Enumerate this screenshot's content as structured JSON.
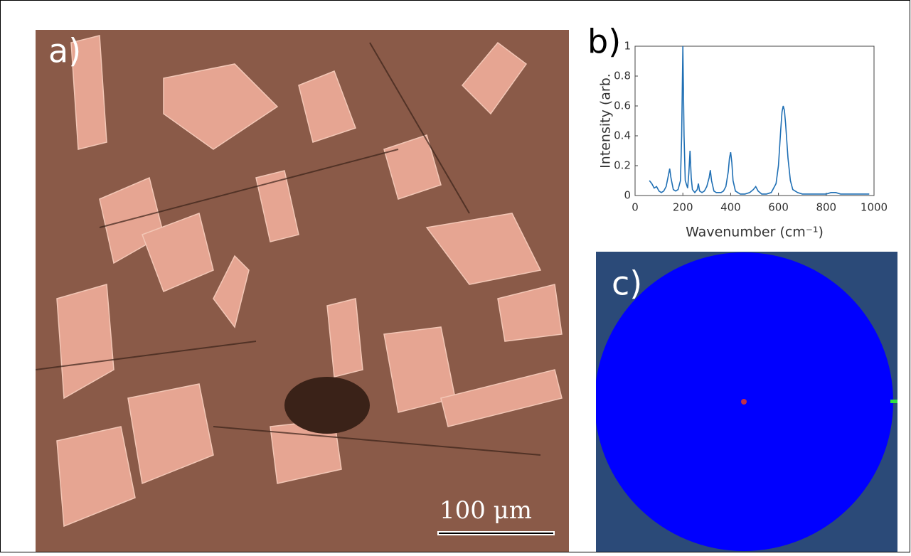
{
  "figure": {
    "panel_a_label": "a)",
    "scale_bar_label": "100 μm",
    "panel_b_label": "b)",
    "panel_c_label": "c)"
  },
  "chart_data": {
    "type": "line",
    "xlabel": "Wavenumber (cm⁻¹)",
    "ylabel": "Intensity (arb.",
    "x": [
      60,
      70,
      80,
      90,
      100,
      110,
      120,
      130,
      140,
      145,
      150,
      160,
      170,
      180,
      190,
      195,
      200,
      205,
      210,
      220,
      225,
      230,
      235,
      240,
      250,
      260,
      265,
      270,
      280,
      290,
      300,
      310,
      315,
      320,
      330,
      340,
      350,
      360,
      370,
      380,
      390,
      395,
      400,
      405,
      410,
      420,
      440,
      460,
      480,
      495,
      505,
      515,
      530,
      550,
      570,
      590,
      600,
      610,
      615,
      620,
      625,
      630,
      640,
      650,
      660,
      680,
      700,
      750,
      800,
      820,
      830,
      840,
      860,
      900,
      950,
      980
    ],
    "series": [
      {
        "color": "#1f6fb4",
        "values": [
          0.1,
          0.08,
          0.05,
          0.06,
          0.03,
          0.02,
          0.03,
          0.06,
          0.14,
          0.18,
          0.12,
          0.04,
          0.03,
          0.04,
          0.1,
          0.4,
          1.0,
          0.4,
          0.1,
          0.05,
          0.15,
          0.3,
          0.12,
          0.04,
          0.02,
          0.04,
          0.08,
          0.03,
          0.02,
          0.03,
          0.06,
          0.12,
          0.17,
          0.1,
          0.03,
          0.02,
          0.02,
          0.02,
          0.03,
          0.06,
          0.16,
          0.25,
          0.29,
          0.22,
          0.1,
          0.03,
          0.01,
          0.01,
          0.02,
          0.04,
          0.06,
          0.03,
          0.01,
          0.01,
          0.02,
          0.08,
          0.2,
          0.45,
          0.56,
          0.6,
          0.57,
          0.48,
          0.25,
          0.1,
          0.04,
          0.02,
          0.01,
          0.01,
          0.01,
          0.02,
          0.02,
          0.02,
          0.01,
          0.01,
          0.01,
          0.01
        ]
      }
    ],
    "xlim": [
      0,
      1000
    ],
    "ylim": [
      0,
      1
    ],
    "xticks": [
      0,
      200,
      400,
      600,
      800,
      1000
    ],
    "yticks": [
      0,
      0.2,
      0.4,
      0.6,
      0.8,
      1
    ]
  }
}
